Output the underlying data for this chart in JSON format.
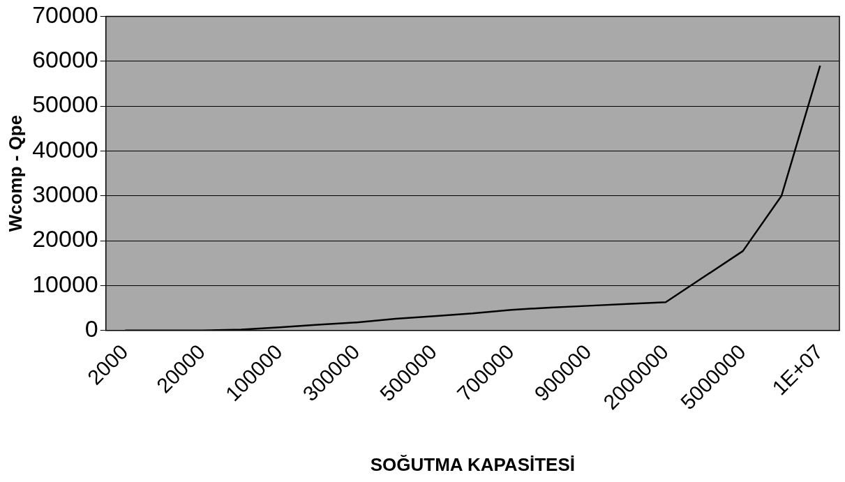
{
  "chart_data": {
    "type": "line",
    "xlabel": "SOĞUTMA KAPASİTESİ",
    "ylabel": "Wcomp - Qpe",
    "categories": [
      "2000",
      null,
      "20000",
      null,
      "100000",
      null,
      "300000",
      null,
      "500000",
      null,
      "700000",
      null,
      "900000",
      null,
      "2000000",
      null,
      "5000000",
      null,
      "1E+07"
    ],
    "series": [
      {
        "color": "#000000",
        "values": [
          0,
          0,
          0,
          200,
          700,
          1300,
          1800,
          2600,
          3200,
          3800,
          4600,
          5100,
          5500,
          5900,
          6300,
          12000,
          17700,
          30000,
          59000
        ]
      }
    ],
    "ylim": [
      0,
      70000
    ],
    "yticks": [
      0,
      10000,
      20000,
      30000,
      40000,
      50000,
      60000,
      70000
    ],
    "grid": "y",
    "legend": false,
    "marker": "none",
    "line_style": "solid"
  }
}
